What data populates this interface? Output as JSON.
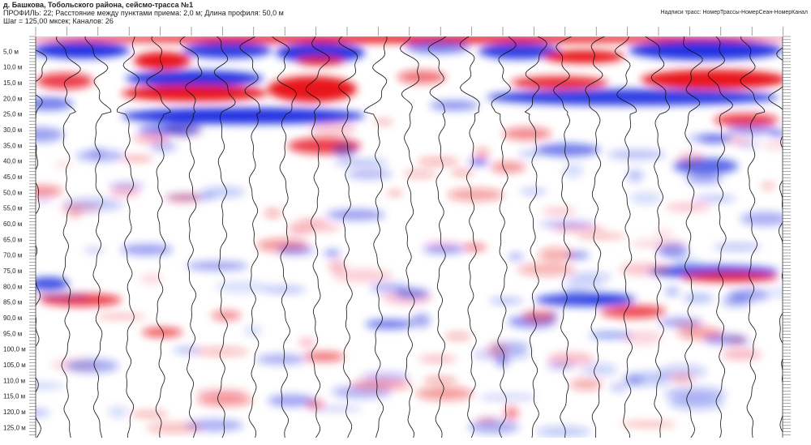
{
  "header": {
    "title": "д. Башкова, Тобольского района, сейсмо-трасса №1",
    "line2": "ПРОФИЛЬ: 22;  Расстояние между пунктами приема: 2,0 м;  Длина профиля: 50,0 м",
    "line3": "Шаг = 125,00 мксек;  Каналов: 26",
    "trace_caption": "Надписи трасс: НомерТрассы-НомерСеан-НомерКанал"
  },
  "depth_axis": {
    "labels": [
      "5,0 м",
      "10,0 м",
      "15,0 м",
      "20,0 м",
      "25,0 м",
      "30,0 м",
      "35,0 м",
      "40,0 м",
      "45,0 м",
      "50,0 м",
      "55,0 м",
      "60,0 м",
      "65,0 м",
      "70,0 м",
      "75,0 м",
      "80,0 м",
      "85,0 м",
      "90,0 м",
      "95,0 м",
      "100,0 м",
      "105,0 м",
      "110,0 м",
      "115,0 м",
      "120,0 м",
      "125,0 м"
    ]
  }
}
